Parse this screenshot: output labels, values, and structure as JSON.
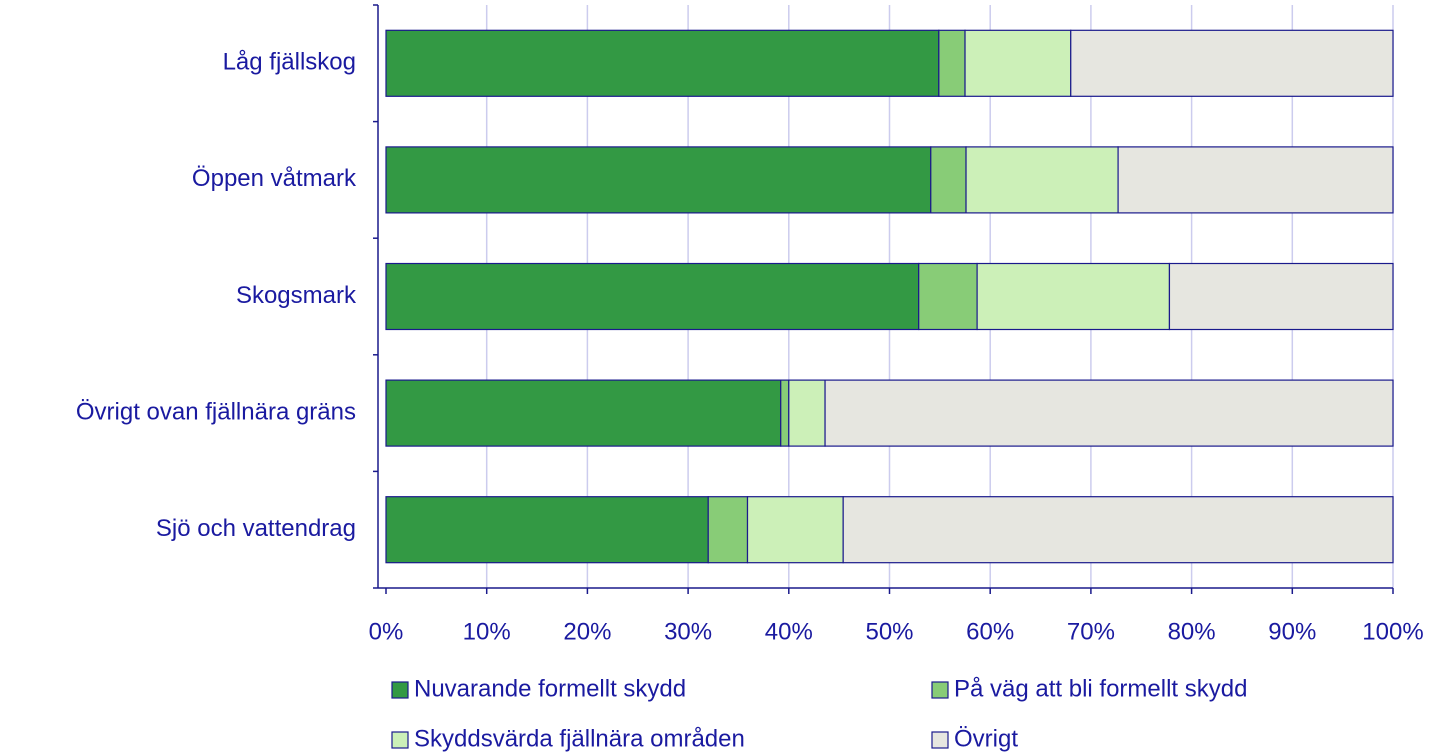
{
  "chart_data": {
    "type": "stacked_bar_horizontal",
    "categories": [
      "Låg fjällskog",
      "Öppen våtmark",
      "Skogsmark",
      "Övrigt ovan fjällnära gräns",
      "Sjö och vattendrag"
    ],
    "series": [
      {
        "name": "Nuvarande formellt skydd",
        "color": "#339944",
        "values": [
          54.9,
          54.1,
          52.9,
          39.2,
          32.0
        ]
      },
      {
        "name": "På väg att bli formellt skydd",
        "color": "#88cc77",
        "values": [
          2.6,
          3.5,
          5.8,
          0.8,
          3.9
        ]
      },
      {
        "name": "Skyddsvärda fjällnära områden",
        "color": "#ccf0b8",
        "values": [
          10.5,
          15.1,
          19.1,
          3.6,
          9.5
        ]
      },
      {
        "name": "Övrigt",
        "color": "#e6e6e0",
        "values": [
          32.0,
          27.3,
          22.2,
          56.4,
          54.6
        ]
      }
    ],
    "xlim": [
      0,
      100
    ],
    "xticks": [
      {
        "value": 0,
        "label": "0%"
      },
      {
        "value": 10,
        "label": "10%"
      },
      {
        "value": 20,
        "label": "20%"
      },
      {
        "value": 30,
        "label": "30%"
      },
      {
        "value": 40,
        "label": "40%"
      },
      {
        "value": 50,
        "label": "50%"
      },
      {
        "value": 60,
        "label": "60%"
      },
      {
        "value": 70,
        "label": "70%"
      },
      {
        "value": 80,
        "label": "80%"
      },
      {
        "value": 90,
        "label": "90%"
      },
      {
        "value": 100,
        "label": "100%"
      }
    ],
    "grid": true
  }
}
